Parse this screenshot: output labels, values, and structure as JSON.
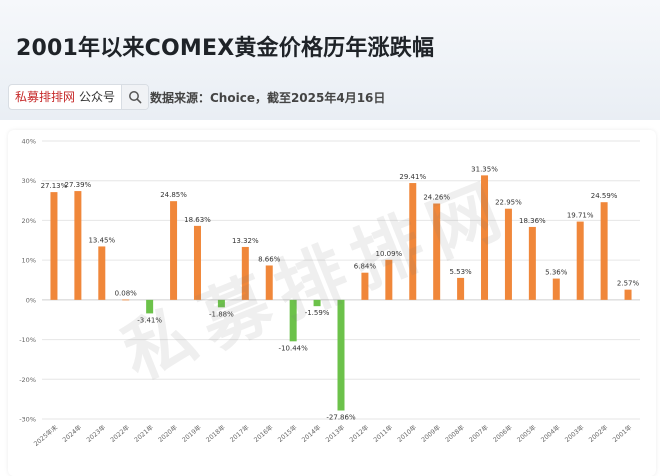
{
  "header": {
    "title": "2001年以来COMEX黄金价格历年涨跌幅",
    "brand_name": "私募排排网",
    "brand_tag": "公众号",
    "source": "数据来源：Choice，截至2025年4月16日"
  },
  "watermark": "私募排排网",
  "colors": {
    "positive": "#f0873a",
    "negative": "#6cc24a",
    "grid": "#e6e6e6"
  },
  "chart_data": {
    "type": "bar",
    "categories": [
      "2025年末",
      "2024年",
      "2023年",
      "2022年",
      "2021年",
      "2020年",
      "2019年",
      "2018年",
      "2017年",
      "2016年",
      "2015年",
      "2014年",
      "2013年",
      "2012年",
      "2011年",
      "2010年",
      "2009年",
      "2008年",
      "2007年",
      "2006年",
      "2005年",
      "2004年",
      "2003年",
      "2002年",
      "2001年"
    ],
    "values": [
      27.13,
      27.39,
      13.45,
      0.08,
      -3.41,
      24.85,
      18.63,
      -1.88,
      13.32,
      8.66,
      -10.44,
      -1.59,
      -27.86,
      6.84,
      10.09,
      29.41,
      24.26,
      5.53,
      31.35,
      22.95,
      18.36,
      5.36,
      19.71,
      24.59,
      2.57
    ],
    "labels": [
      "27.13%",
      "27.39%",
      "13.45%",
      "0.08%",
      "-3.41%",
      "24.85%",
      "18.63%",
      "-1.88%",
      "13.32%",
      "8.66%",
      "-10.44%",
      "-1.59%",
      "-27.86%",
      "6.84%",
      "10.09%",
      "29.41%",
      "24.26%",
      "5.53%",
      "31.35%",
      "22.95%",
      "18.36%",
      "5.36%",
      "19.71%",
      "24.59%",
      "2.57%"
    ],
    "yticks": [
      40,
      30,
      20,
      10,
      0,
      -10,
      -20,
      -30
    ],
    "yticklabels": [
      "40%",
      "30%",
      "20%",
      "10%",
      "0%",
      "-10%",
      "-20%",
      "-30%"
    ],
    "ylim": [
      -30,
      40
    ],
    "title": "",
    "xlabel": "",
    "ylabel": "",
    "grid": true
  }
}
